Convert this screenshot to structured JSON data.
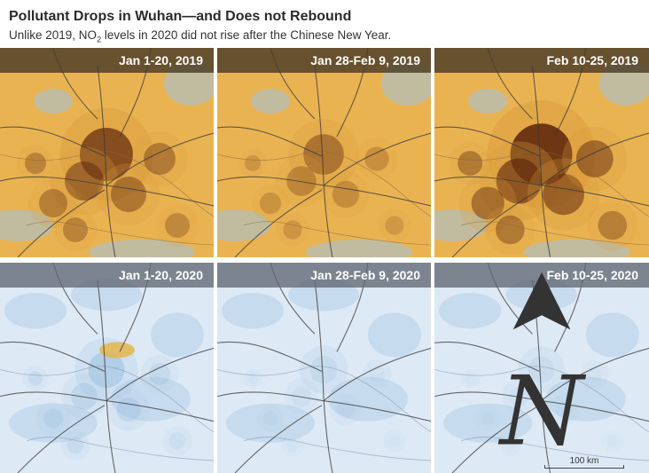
{
  "header": {
    "title": "Pollutant Drops in Wuhan—and Does not Rebound",
    "subtitle_before": "Unlike 2019, NO",
    "subtitle_sub": "2",
    "subtitle_after": " levels in 2020 did not rise after the Chinese New Year."
  },
  "panels": [
    {
      "label": "Jan 1-20, 2019",
      "year": "2019",
      "pollution_level": 0.75
    },
    {
      "label": "Jan 28-Feb 9, 2019",
      "year": "2019",
      "pollution_level": 0.45
    },
    {
      "label": "Feb 10-25, 2019",
      "year": "2019",
      "pollution_level": 0.95
    },
    {
      "label": "Jan 1-20, 2020",
      "year": "2020",
      "pollution_level": 0.35
    },
    {
      "label": "Jan 28-Feb 9, 2020",
      "year": "2020",
      "pollution_level": 0.15
    },
    {
      "label": "Feb 10-25, 2020",
      "year": "2020",
      "pollution_level": 0.12
    }
  ],
  "scale_bar": {
    "label": "100 km"
  },
  "north_arrow": {
    "label": "N"
  },
  "colors": {
    "high_no2": "#5a220c",
    "mid_no2": "#d99a3a",
    "low_no2_warm": "#eab352",
    "low_no2_cool": "#9fc3e0",
    "background_2020": "#dde9f5"
  },
  "icons": {
    "north": "north-arrow-icon"
  }
}
